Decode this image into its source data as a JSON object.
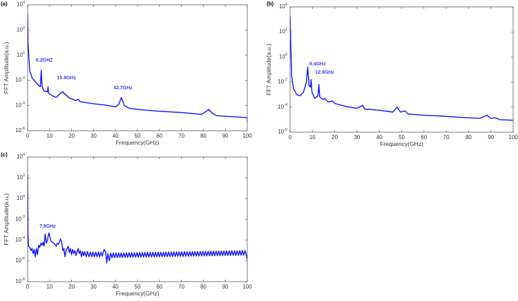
{
  "line_color": "#1010ff",
  "annotation_color": "#3a3aff",
  "chart_data": [
    {
      "panel_label": "(a)",
      "type": "line",
      "xlabel": "Frequency(GHz)",
      "ylabel": "FFT Amplitude(a.u.)",
      "yscale": "log10",
      "xlim": [
        0,
        100
      ],
      "ylim_log10": [
        -6,
        4
      ],
      "xticks": [
        0,
        10,
        20,
        30,
        40,
        50,
        60,
        70,
        80,
        90,
        100
      ],
      "yticks_log10": [
        4,
        2,
        0,
        -2,
        -4,
        -6
      ],
      "annotations": [
        {
          "text": "6.2GHZ",
          "x": 7.6,
          "log10_y": -0.5
        },
        {
          "text": "15.9GHz",
          "x": 17.7,
          "log10_y": -1.9
        },
        {
          "text": "42.7GHz",
          "x": 43.4,
          "log10_y": -2.7
        }
      ],
      "series": [
        {
          "name": "FFT",
          "x": [
            0,
            0.2,
            0.5,
            1,
            1.5,
            2,
            3,
            4,
            5,
            5.8,
            6.2,
            6.6,
            7.5,
            9.1,
            9.3,
            9.5,
            11,
            13,
            14.5,
            15.9,
            17,
            19,
            22,
            23,
            24,
            30,
            35,
            40,
            41.5,
            42.7,
            44,
            46,
            50,
            60,
            70,
            79,
            81,
            82.5,
            84,
            86,
            90,
            100,
            100
          ],
          "log10_y": [
            3.3,
            1,
            0,
            -1.3,
            -1.5,
            -1.8,
            -2,
            -2.2,
            -2.4,
            -2.5,
            -1.2,
            -2.5,
            -2.85,
            -2.9,
            -2.5,
            -3,
            -3.2,
            -3.35,
            -3.1,
            -2.9,
            -3.1,
            -3.4,
            -3.6,
            -3.5,
            -3.7,
            -3.85,
            -3.95,
            -4.1,
            -3.9,
            -3.35,
            -4.0,
            -4.2,
            -4.3,
            -4.45,
            -4.55,
            -4.7,
            -4.5,
            -4.3,
            -4.6,
            -4.8,
            -4.85,
            -4.95,
            -5.3
          ]
        }
      ]
    },
    {
      "panel_label": "(b)",
      "type": "line",
      "xlabel": "Frequency(GHz)",
      "ylabel": "FFT Amplitude(a.u.)",
      "yscale": "log10",
      "xlim": [
        0,
        100
      ],
      "ylim_log10": [
        -6,
        4
      ],
      "xticks": [
        0,
        10,
        20,
        30,
        40,
        50,
        60,
        70,
        80,
        90,
        100
      ],
      "yticks_log10": [
        4,
        2,
        0,
        -2,
        -4,
        -6
      ],
      "annotations": [
        {
          "text": "9.4GHz",
          "x": 12.3,
          "log10_y": -0.66
        },
        {
          "text": "12.9GHz",
          "x": 15.5,
          "log10_y": -1.34
        }
      ],
      "series": [
        {
          "name": "FFT",
          "x": [
            0,
            0.3,
            0.7,
            1.5,
            3,
            4.5,
            6,
            7.3,
            7.9,
            8.5,
            9.1,
            9.4,
            9.8,
            11,
            12.5,
            12.9,
            13.3,
            15,
            15.5,
            17,
            19,
            20,
            25,
            30,
            32.5,
            33.5,
            40,
            46,
            48,
            49.5,
            51.5,
            53,
            60,
            67,
            75,
            85,
            88.3,
            90,
            92,
            94,
            100
          ],
          "log10_y": [
            3.3,
            1,
            -1.5,
            -2.5,
            -3,
            -3.1,
            -2.8,
            -2,
            -0.8,
            -2.3,
            -2.4,
            -1.8,
            -2.8,
            -3.3,
            -3.1,
            -2.2,
            -3.2,
            -3.4,
            -3.3,
            -3.6,
            -3.5,
            -3.7,
            -3.95,
            -4.1,
            -3.85,
            -4.15,
            -4.25,
            -4.4,
            -4.0,
            -4.4,
            -4.3,
            -4.55,
            -4.65,
            -4.7,
            -4.8,
            -4.9,
            -4.65,
            -4.9,
            -4.85,
            -5.0,
            -5.05
          ]
        }
      ]
    },
    {
      "panel_label": "(c)",
      "type": "line",
      "xlabel": "Frequency(GHz)",
      "ylabel": "FFT Amplitude(a.u.)",
      "yscale": "log10",
      "xlim": [
        0,
        100
      ],
      "ylim_log10": [
        -8,
        4
      ],
      "xticks": [
        0,
        10,
        20,
        30,
        40,
        50,
        60,
        70,
        80,
        90,
        100
      ],
      "yticks_log10": [
        4,
        2,
        0,
        -2,
        -4,
        -6,
        -8
      ],
      "annotations": [
        {
          "text": "7.9GHz",
          "x": 9.1,
          "log10_y": -2.8
        }
      ],
      "series": [
        {
          "name": "FFT",
          "x": [
            0,
            0.1,
            0.2,
            0.4,
            1,
            1.5,
            2,
            2.5,
            3,
            3.5,
            4,
            4.5,
            5,
            5.5,
            6,
            6.5,
            7,
            7.5,
            8,
            8.5,
            9,
            9.7,
            10.5,
            11,
            12,
            13,
            13.5,
            14,
            15,
            15.5,
            16,
            16.5,
            17,
            17.5,
            18.5,
            19,
            19.5,
            20,
            20.5,
            21,
            21.5,
            22,
            23,
            23.5,
            24,
            24.5,
            25,
            25.5,
            26,
            26.7,
            27.2,
            28,
            28.5,
            29.2,
            29.7,
            30.4,
            31,
            31.6,
            32.2,
            32.8,
            33.4,
            34,
            34.8,
            35.5,
            36,
            36.5,
            37.2
          ],
          "log10_y": [
            2.3,
            -1,
            -3.5,
            -4.6,
            -4.7,
            -5,
            -4.8,
            -5.3,
            -4.9,
            -5.6,
            -4.8,
            -5.4,
            -4.5,
            -4.7,
            -4.3,
            -4.5,
            -4.2,
            -4.6,
            -3.4,
            -4.3,
            -4.0,
            -3.3,
            -4.0,
            -4.2,
            -4.3,
            -4.6,
            -4.3,
            -4.4,
            -3.9,
            -4.2,
            -5,
            -4.8,
            -5.6,
            -5.0,
            -4.6,
            -5.2,
            -4.8,
            -5.4,
            -4.9,
            -5.3,
            -5,
            -5.5,
            -4.8,
            -5.3,
            -5.0,
            -5.6,
            -5.1,
            -5.5,
            -5.1,
            -5.6,
            -5.1,
            -5.6,
            -5.15,
            -5.6,
            -5.15,
            -5.6,
            -5.15,
            -5.6,
            -5.15,
            -5.6,
            -5.15,
            -5.55,
            -4.9,
            -5.1,
            -6.2,
            -5.3,
            -6.0
          ],
          "ripple": {
            "from_x": 37.8,
            "to_x": 100,
            "period": 1.2,
            "low_log10_start": -5.7,
            "low_log10_end": -5.45,
            "high_log10_start": -5.25,
            "high_log10_end": -5.0
          }
        }
      ]
    }
  ]
}
